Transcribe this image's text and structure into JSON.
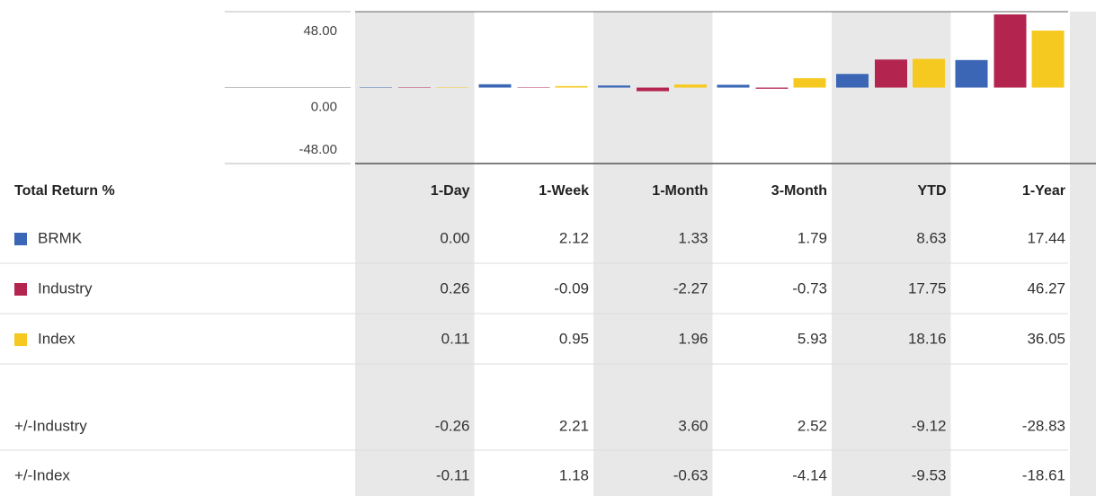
{
  "chart_data": {
    "type": "bar",
    "categories": [
      "1-Day",
      "1-Week",
      "1-Month",
      "3-Month",
      "YTD",
      "1-Year"
    ],
    "series": [
      {
        "name": "BRMK",
        "color": "#3a66b5",
        "values": [
          0,
          2.12,
          1.33,
          1.79,
          8.63,
          17.44
        ],
        "value_labels": [
          "0.00",
          "2.12",
          "1.33",
          "1.79",
          "8.63",
          "17.44"
        ]
      },
      {
        "name": "Industry",
        "color": "#b3244f",
        "values": [
          0.26,
          -0.09,
          -2.27,
          -0.73,
          17.75,
          46.27
        ],
        "value_labels": [
          "0.26",
          "-0.09",
          "-2.27",
          "-0.73",
          "17.75",
          "46.27"
        ]
      },
      {
        "name": "Index",
        "color": "#f6c920",
        "values": [
          0.11,
          0.95,
          1.96,
          5.93,
          18.16,
          36.05
        ],
        "value_labels": [
          "0.11",
          "0.95",
          "1.96",
          "5.93",
          "18.16",
          "36.05"
        ]
      }
    ],
    "ylim": [
      -48,
      48
    ],
    "yticks": [
      {
        "value": 48,
        "label": "48.00"
      },
      {
        "value": 0,
        "label": "0.00"
      },
      {
        "value": -48,
        "label": "-48.00"
      }
    ]
  },
  "table": {
    "header": "Total Return %",
    "rows": [
      {
        "label": "+/-Industry",
        "values": [
          "-0.26",
          "2.21",
          "3.60",
          "2.52",
          "-9.12",
          "-28.83"
        ]
      },
      {
        "label": "+/-Index",
        "values": [
          "-0.11",
          "1.18",
          "-0.63",
          "-4.14",
          "-9.53",
          "-18.61"
        ]
      }
    ]
  }
}
